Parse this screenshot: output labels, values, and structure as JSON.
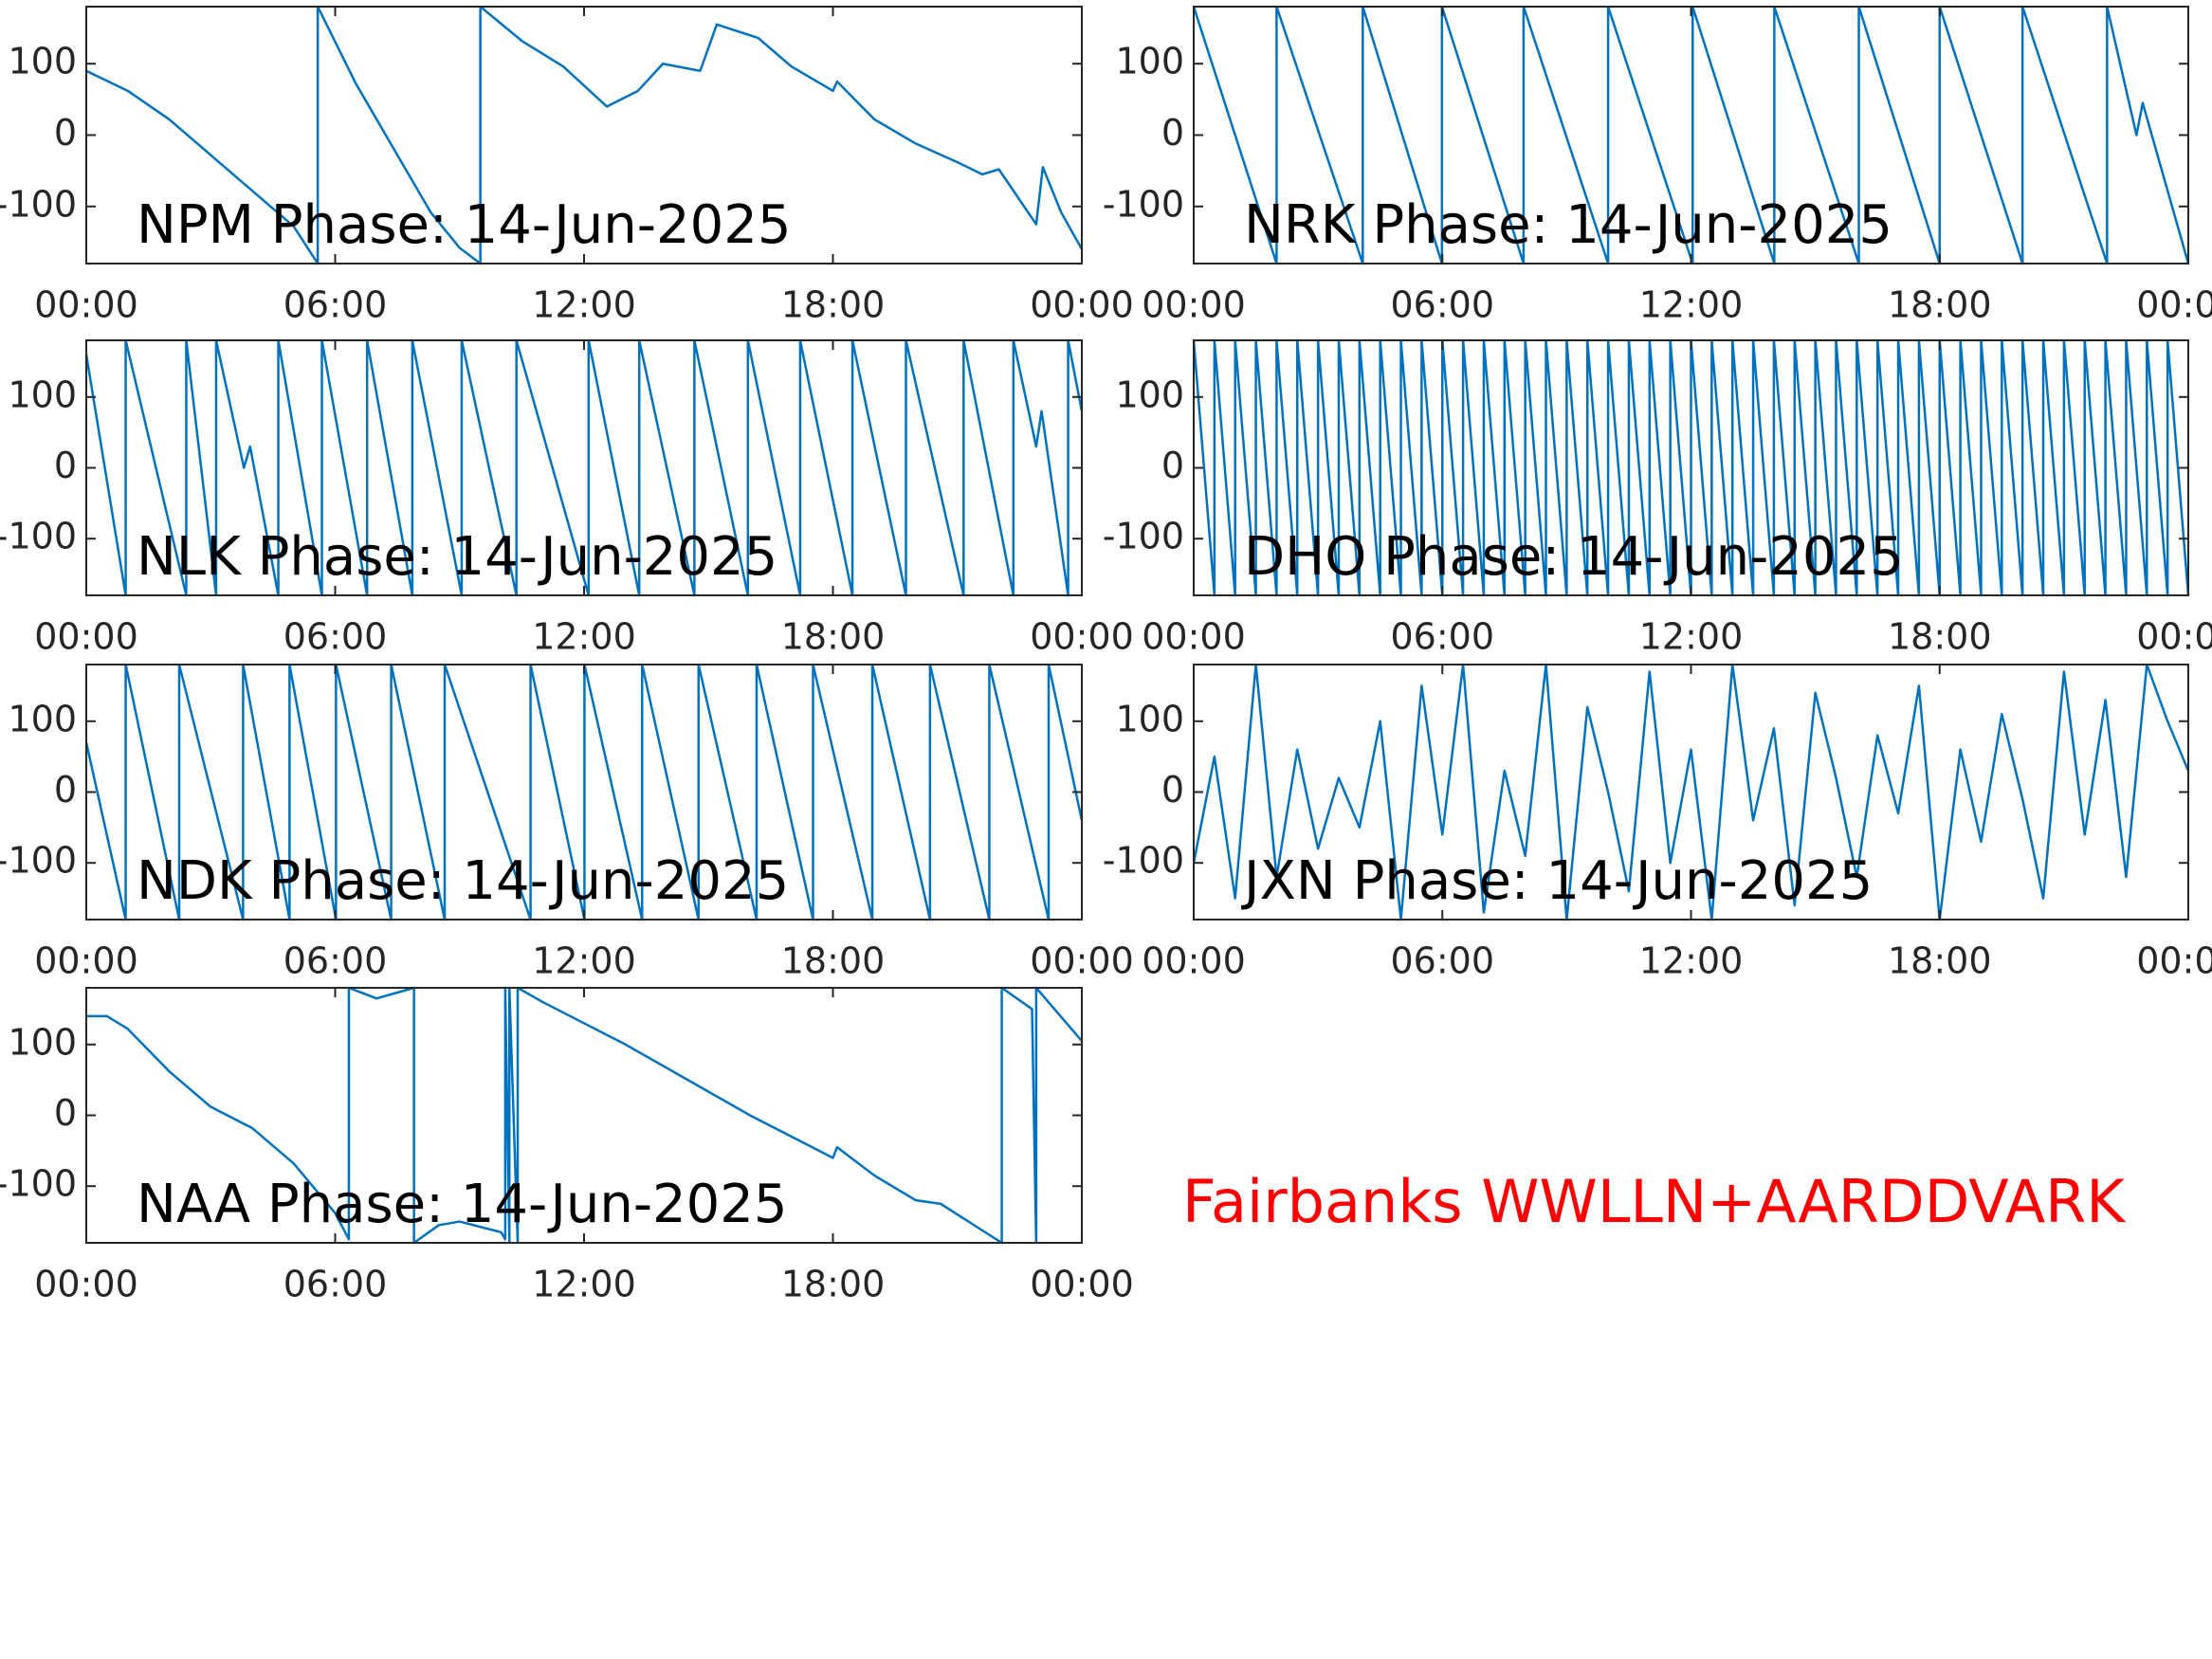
{
  "chart_data": [
    {
      "type": "line",
      "title": "NPM Phase: 14-Jun-2025",
      "color": "#0072bd",
      "x": [
        0,
        1,
        2,
        3,
        4,
        5,
        5.58,
        5.58,
        6.5,
        7.5,
        8.3,
        9,
        9.5,
        9.5,
        10.5,
        11.5,
        12.55,
        13.3,
        13.9,
        14.8,
        15.2,
        16.2,
        17,
        18,
        18.1,
        19,
        20,
        21,
        21.6,
        22,
        22.9,
        23.06,
        23.5,
        24
      ],
      "values": [
        90,
        62,
        22,
        -28,
        -78,
        -128,
        -180,
        180,
        72,
        -28,
        -108,
        -158,
        -180,
        180,
        132,
        96,
        40,
        62,
        100,
        90,
        155,
        136,
        96,
        62,
        75,
        22,
        -12,
        -38,
        -55,
        -48,
        -125,
        -45,
        -108,
        -160
      ],
      "xlim": [
        0,
        24
      ],
      "ylim": [
        -180,
        180
      ],
      "xticks": [
        {
          "value": 0,
          "label": "00:00"
        },
        {
          "value": 6,
          "label": "06:00"
        },
        {
          "value": 12,
          "label": "12:00"
        },
        {
          "value": 18,
          "label": "18:00"
        },
        {
          "value": 24,
          "label": "00:00"
        }
      ],
      "yticks": [
        -100,
        0,
        100
      ]
    },
    {
      "type": "line",
      "title": "NRK Phase: 14-Jun-2025",
      "color": "#0072bd",
      "x": [
        0,
        2,
        2,
        4.08,
        4.08,
        5.99,
        5.99,
        7.96,
        7.96,
        10,
        10,
        12.04,
        12.04,
        14.01,
        14.01,
        16.05,
        16.05,
        18,
        18,
        20,
        20,
        22.04,
        22.04,
        22.75,
        22.9,
        24
      ],
      "values": [
        180,
        -180,
        180,
        -180,
        180,
        -180,
        180,
        -180,
        180,
        -180,
        180,
        -180,
        180,
        -180,
        180,
        -180,
        180,
        -180,
        180,
        -180,
        180,
        -180,
        180,
        0,
        45,
        -180
      ],
      "xlim": [
        0,
        24
      ],
      "ylim": [
        -180,
        180
      ],
      "xticks": [
        {
          "value": 0,
          "label": "00:00"
        },
        {
          "value": 6,
          "label": "06:00"
        },
        {
          "value": 12,
          "label": "12:00"
        },
        {
          "value": 18,
          "label": "18:00"
        },
        {
          "value": 24,
          "label": "00:00"
        }
      ],
      "yticks": [
        -100,
        0,
        100
      ]
    },
    {
      "type": "line",
      "title": "NLK Phase: 14-Jun-2025",
      "color": "#0072bd",
      "x": [
        0,
        0.95,
        0.95,
        2.41,
        2.41,
        3.13,
        3.13,
        3.8,
        3.95,
        4.63,
        4.63,
        5.68,
        5.68,
        6.77,
        6.77,
        7.86,
        7.86,
        9.05,
        9.05,
        10.37,
        10.37,
        12.11,
        12.11,
        13.33,
        13.33,
        14.66,
        14.66,
        15.95,
        15.95,
        17.21,
        17.21,
        18.47,
        18.47,
        19.76,
        19.76,
        21.15,
        21.15,
        22.35,
        22.35,
        22.9,
        23.03,
        23.67,
        23.67,
        24
      ],
      "values": [
        160,
        -180,
        180,
        -180,
        180,
        -180,
        180,
        0,
        30,
        -180,
        180,
        -180,
        180,
        -180,
        180,
        -180,
        180,
        -180,
        180,
        -180,
        180,
        -180,
        180,
        -180,
        180,
        -180,
        180,
        -180,
        180,
        -180,
        180,
        -180,
        180,
        -180,
        180,
        -180,
        180,
        -180,
        180,
        30,
        80,
        -180,
        180,
        80
      ],
      "xlim": [
        0,
        24
      ],
      "ylim": [
        -180,
        180
      ],
      "xticks": [
        {
          "value": 0,
          "label": "00:00"
        },
        {
          "value": 6,
          "label": "06:00"
        },
        {
          "value": 12,
          "label": "12:00"
        },
        {
          "value": 18,
          "label": "18:00"
        },
        {
          "value": 24,
          "label": "00:00"
        }
      ],
      "yticks": [
        -100,
        0,
        100
      ]
    },
    {
      "type": "line",
      "title": "DHO Phase: 14-Jun-2025",
      "color": "#0072bd",
      "x": [
        0,
        0.5,
        0.5,
        1,
        1,
        1.5,
        1.5,
        2,
        2,
        2.5,
        2.5,
        3,
        3,
        3.5,
        3.5,
        4,
        4,
        4.5,
        4.5,
        5,
        5,
        5.5,
        5.5,
        6,
        6,
        6.5,
        6.5,
        7,
        7,
        7.5,
        7.5,
        8,
        8,
        8.5,
        8.5,
        9,
        9,
        9.5,
        9.5,
        10,
        10,
        10.5,
        10.5,
        11,
        11,
        11.5,
        11.5,
        12,
        12,
        12.5,
        12.5,
        13,
        13,
        13.5,
        13.5,
        14,
        14,
        14.5,
        14.5,
        15,
        15,
        15.5,
        15.5,
        16,
        16,
        16.5,
        16.5,
        17,
        17,
        17.5,
        17.5,
        18,
        18,
        18.5,
        18.5,
        19,
        19,
        19.5,
        19.5,
        20,
        20,
        20.5,
        20.5,
        21,
        21,
        21.5,
        21.5,
        22,
        22,
        22.5,
        22.5,
        23,
        23,
        23.5,
        23.5,
        24
      ],
      "values": [
        180,
        -180,
        180,
        -180,
        180,
        -180,
        180,
        -180,
        180,
        -180,
        180,
        -180,
        180,
        -180,
        180,
        -180,
        180,
        -180,
        180,
        -180,
        180,
        -180,
        180,
        -180,
        180,
        -180,
        180,
        -180,
        180,
        -180,
        180,
        -180,
        180,
        -180,
        180,
        -180,
        180,
        -180,
        180,
        -180,
        180,
        -180,
        180,
        -180,
        180,
        -180,
        180,
        -180,
        180,
        -180,
        180,
        -180,
        180,
        -180,
        180,
        -180,
        180,
        -180,
        180,
        -180,
        180,
        -180,
        180,
        -180,
        180,
        -180,
        180,
        -180,
        180,
        -180,
        180,
        -180,
        180,
        -180,
        180,
        -180,
        180,
        -180,
        180,
        -180,
        180,
        -180,
        180,
        -180,
        180,
        -180,
        180,
        -180,
        180,
        -180,
        180,
        -180,
        180,
        -180,
        180,
        -180
      ],
      "xlim": [
        0,
        24
      ],
      "ylim": [
        -180,
        180
      ],
      "xticks": [
        {
          "value": 0,
          "label": "00:00"
        },
        {
          "value": 6,
          "label": "06:00"
        },
        {
          "value": 12,
          "label": "12:00"
        },
        {
          "value": 18,
          "label": "18:00"
        },
        {
          "value": 24,
          "label": "00:00"
        }
      ],
      "yticks": [
        -100,
        0,
        100
      ]
    },
    {
      "type": "line",
      "title": "NDK Phase: 14-Jun-2025",
      "color": "#0072bd",
      "x": [
        0,
        0.95,
        0.95,
        2.24,
        2.24,
        3.78,
        3.78,
        4.9,
        4.9,
        6.02,
        6.02,
        7.35,
        7.35,
        8.64,
        8.64,
        10.71,
        10.71,
        12.01,
        12.01,
        13.4,
        13.4,
        14.76,
        14.76,
        16.16,
        16.16,
        17.52,
        17.52,
        18.95,
        18.95,
        20.34,
        20.34,
        21.77,
        21.77,
        23.2,
        23.2,
        24
      ],
      "values": [
        70,
        -180,
        180,
        -180,
        180,
        -180,
        180,
        -180,
        180,
        -180,
        180,
        -180,
        180,
        -180,
        180,
        -180,
        180,
        -180,
        180,
        -180,
        180,
        -180,
        180,
        -180,
        180,
        -180,
        180,
        -180,
        180,
        -180,
        180,
        -180,
        180,
        -180,
        180,
        -40
      ],
      "xlim": [
        0,
        24
      ],
      "ylim": [
        -180,
        180
      ],
      "xticks": [
        {
          "value": 0,
          "label": "00:00"
        },
        {
          "value": 6,
          "label": "06:00"
        },
        {
          "value": 12,
          "label": "12:00"
        },
        {
          "value": 18,
          "label": "18:00"
        },
        {
          "value": 24,
          "label": "00:00"
        }
      ],
      "yticks": [
        -100,
        0,
        100
      ]
    },
    {
      "type": "line",
      "title": "JXN Phase: 14-Jun-2025",
      "color": "#0072bd",
      "x": [
        0,
        0.5,
        1,
        1.5,
        2,
        2.5,
        3,
        3.5,
        4,
        4.5,
        5,
        5.5,
        6,
        6.5,
        7,
        7.5,
        8,
        8.5,
        9,
        9.5,
        10,
        10.5,
        11,
        11.5,
        12,
        12.5,
        13,
        13.5,
        14,
        14.5,
        15,
        15.5,
        16,
        16.5,
        17,
        17.5,
        18,
        18.5,
        19,
        19.5,
        20,
        20.5,
        21,
        21.5,
        22,
        22.5,
        23,
        23.5,
        24
      ],
      "values": [
        -100,
        50,
        -150,
        180,
        -120,
        60,
        -80,
        20,
        -50,
        100,
        -180,
        150,
        -60,
        180,
        -170,
        30,
        -90,
        180,
        -180,
        120,
        0,
        -140,
        170,
        -100,
        60,
        -180,
        180,
        -40,
        90,
        -160,
        140,
        20,
        -120,
        80,
        -30,
        150,
        -180,
        60,
        -70,
        110,
        -10,
        -150,
        170,
        -60,
        130,
        -120,
        180,
        100,
        30
      ],
      "xlim": [
        0,
        24
      ],
      "ylim": [
        -180,
        180
      ],
      "xticks": [
        {
          "value": 0,
          "label": "00:00"
        },
        {
          "value": 6,
          "label": "06:00"
        },
        {
          "value": 12,
          "label": "12:00"
        },
        {
          "value": 18,
          "label": "18:00"
        },
        {
          "value": 24,
          "label": "00:00"
        }
      ],
      "yticks": [
        -100,
        0,
        100
      ]
    },
    {
      "type": "line",
      "title": "NAA Phase: 14-Jun-2025",
      "color": "#0072bd",
      "x": [
        0,
        0.5,
        1,
        2,
        3,
        4,
        5,
        6,
        6.33,
        6.33,
        7,
        7.9,
        7.9,
        8.5,
        9,
        10,
        10.1,
        10.1,
        10.2,
        10.2,
        10.4,
        10.4,
        11,
        13,
        16,
        18,
        18.1,
        19,
        20,
        20.6,
        22.07,
        22.07,
        22.8,
        22.9,
        22.9,
        24
      ],
      "values": [
        140,
        140,
        122,
        62,
        12,
        -18,
        -68,
        -138,
        -175,
        180,
        165,
        180,
        -180,
        -155,
        -150,
        -165,
        -175,
        180,
        -180,
        180,
        -180,
        180,
        160,
        100,
        0,
        -60,
        -45,
        -85,
        -120,
        -125,
        -180,
        180,
        150,
        -180,
        180,
        105
      ],
      "xlim": [
        0,
        24
      ],
      "ylim": [
        -180,
        180
      ],
      "xticks": [
        {
          "value": 0,
          "label": "00:00"
        },
        {
          "value": 6,
          "label": "06:00"
        },
        {
          "value": 12,
          "label": "12:00"
        },
        {
          "value": 18,
          "label": "18:00"
        },
        {
          "value": 24,
          "label": "00:00"
        }
      ],
      "yticks": [
        -100,
        0,
        100
      ]
    }
  ],
  "annotation": "Fairbanks WWLLN+AARDDVARK",
  "annotation_color": "#ff0000"
}
